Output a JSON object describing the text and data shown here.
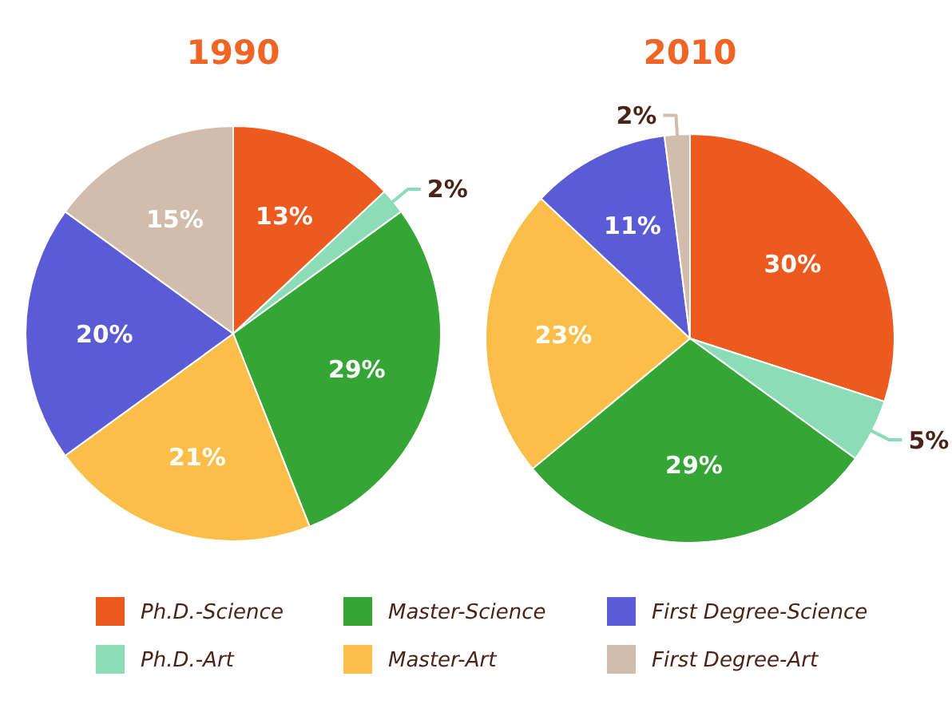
{
  "chart_data": {
    "type": "pie",
    "categories": [
      "Ph.D.-Science",
      "Ph.D.-Art",
      "Master-Science",
      "Master-Art",
      "First Degree-Science",
      "First Degree-Art"
    ],
    "colors": [
      "#ed5a1f",
      "#8ddcb8",
      "#35a535",
      "#fbbe48",
      "#5b5bd6",
      "#d2bdad"
    ],
    "legend": "bottom",
    "series": [
      {
        "name": "1990",
        "values": [
          13,
          2,
          29,
          21,
          20,
          15
        ],
        "value_labels": [
          "13%",
          "2%",
          "29%",
          "21%",
          "20%",
          "15%"
        ]
      },
      {
        "name": "2010",
        "values": [
          30,
          5,
          29,
          23,
          11,
          2
        ],
        "value_labels": [
          "30%",
          "5%",
          "29%",
          "23%",
          "11%",
          "2%"
        ]
      }
    ]
  }
}
